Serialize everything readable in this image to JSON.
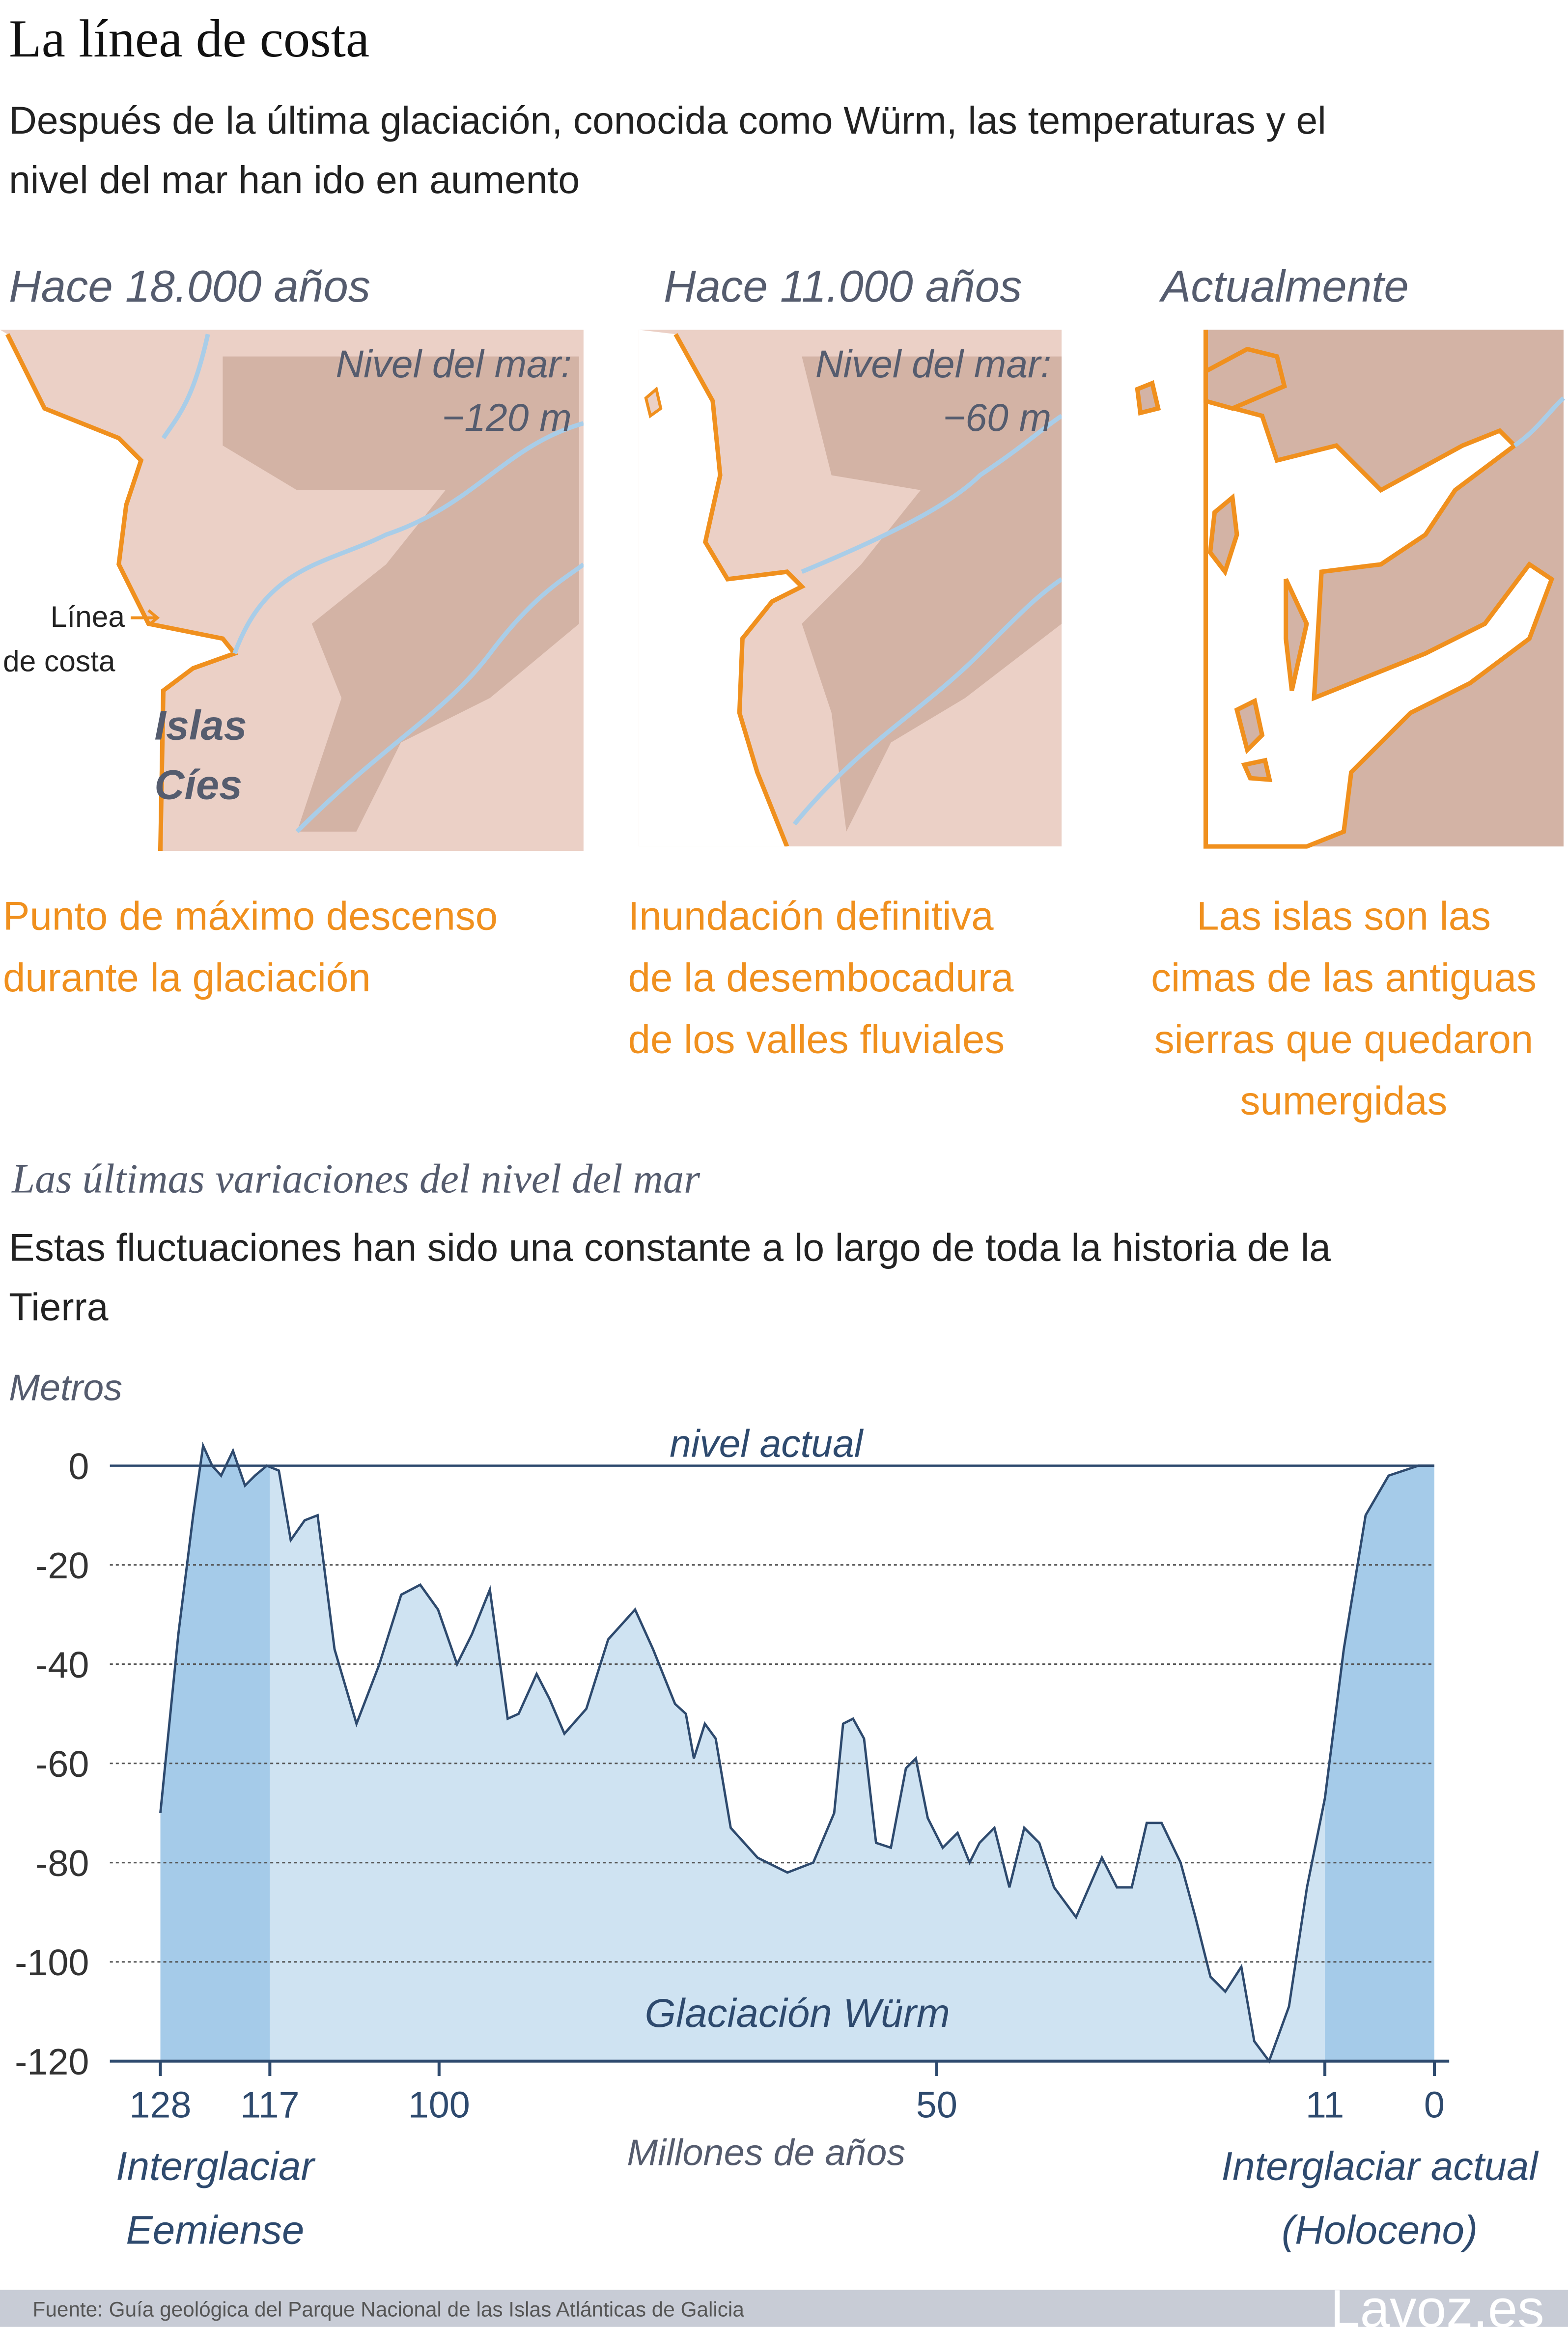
{
  "header": {
    "title": "La línea de costa",
    "subtitle_lines": [
      "Después de la última glaciación, conocida como Würm, las temperaturas y el",
      "nivel del mar han ido en aumento"
    ]
  },
  "maps": [
    {
      "title": "Hace 18.000 años",
      "sea_level_label": "Nivel del mar:",
      "sea_level": "−120 m",
      "caption_lines": [
        "Punto de máximo descenso",
        "durante la glaciación"
      ]
    },
    {
      "title": "Hace 11.000 años",
      "sea_level_label": "Nivel del mar:",
      "sea_level": "−60 m",
      "caption_lines": [
        "Inundación definitiva",
        "de la desembocadura",
        "de los valles fluviales"
      ]
    },
    {
      "title": "Actualmente",
      "caption_lines": [
        "Las islas son las",
        "cimas de las antiguas",
        "sierras que quedaron",
        "sumergidas"
      ]
    }
  ],
  "coast_label_lines": [
    "Línea",
    "de costa"
  ],
  "islands_label_lines": [
    "Islas",
    "Cíes"
  ],
  "chart_data": {
    "type": "area",
    "title": "Las últimas variaciones del nivel del mar",
    "subtitle_lines": [
      "Estas fluctuaciones han sido una constante a lo largo de toda la historia de la",
      "Tierra"
    ],
    "y_label": "Metros",
    "x_label": "Millones de años",
    "annotation": "nivel actual",
    "x": [
      128,
      126.2,
      124.7,
      123.7,
      122.8,
      121.9,
      120.7,
      119.5,
      118.5,
      117.3,
      116.1,
      114.9,
      113.5,
      112.2,
      110.5,
      108.3,
      106,
      103.8,
      101.9,
      100.1,
      98.2,
      96.7,
      94.9,
      93.1,
      92,
      90.2,
      88.9,
      87.4,
      85.2,
      83,
      80.3,
      78.5,
      76.3,
      75.2,
      74.4,
      73.3,
      72.2,
      70.7,
      68,
      65,
      62.4,
      60.3,
      59.4,
      58.4,
      57.3,
      56.1,
      54.6,
      53.1,
      52.1,
      50.9,
      49.4,
      47.9,
      46.7,
      45.7,
      44.2,
      42.7,
      41.2,
      39.7,
      38.2,
      36,
      33.4,
      31.9,
      30.4,
      28.9,
      27.4,
      25.5,
      24,
      22.5,
      21,
      19.4,
      18.1,
      16.6,
      14.6,
      12.8,
      11,
      9.1,
      6.9,
      4.6,
      1.6,
      0
    ],
    "values": [
      -70,
      -34,
      -10,
      4,
      0,
      -2,
      3,
      -4,
      -2,
      0,
      -1,
      -15,
      -11,
      -10,
      -37,
      -52,
      -40,
      -26,
      -24,
      -29,
      -40,
      -34,
      -25,
      -51,
      -50,
      -42,
      -47,
      -54,
      -49,
      -35,
      -29,
      -37,
      -48,
      -50,
      -59,
      -52,
      -55,
      -73,
      -79,
      -82,
      -80,
      -70,
      -52,
      -51,
      -55,
      -76,
      -77,
      -61,
      -59,
      -71,
      -77,
      -74,
      -80,
      -76,
      -73,
      -85,
      -73,
      -76,
      -85,
      -91,
      -79,
      -85,
      -85,
      -72,
      -72,
      -80,
      -91,
      -103,
      -106,
      -101,
      -116,
      -120,
      -109,
      -85,
      -67,
      -37,
      -10,
      -2,
      0,
      0
    ],
    "color": "#2e4a6e",
    "xlim": [
      128,
      0
    ],
    "ylim": [
      -120,
      0
    ],
    "xticks": [
      128,
      117,
      100,
      50,
      11,
      0
    ],
    "yticks": [
      0,
      -20,
      -40,
      -60,
      -80,
      -100,
      -120
    ],
    "grid": true,
    "periods": [
      {
        "label_lines": [
          "Interglaciar",
          "Eemiense"
        ],
        "from": 128,
        "to": 117,
        "color": "#a5cbe9"
      },
      {
        "label_lines": [
          "Glaciación Würm"
        ],
        "from": 117,
        "to": 11,
        "color": "#cfe3f2"
      },
      {
        "label_lines": [
          "Interglaciar actual",
          "(Holoceno)"
        ],
        "from": 11,
        "to": 0,
        "color": "#a5cbe9"
      }
    ]
  },
  "source": "Fuente: Guía geológica del Parque Nacional de las Islas Atlánticas de Galicia",
  "logo": "Lavoz.es"
}
